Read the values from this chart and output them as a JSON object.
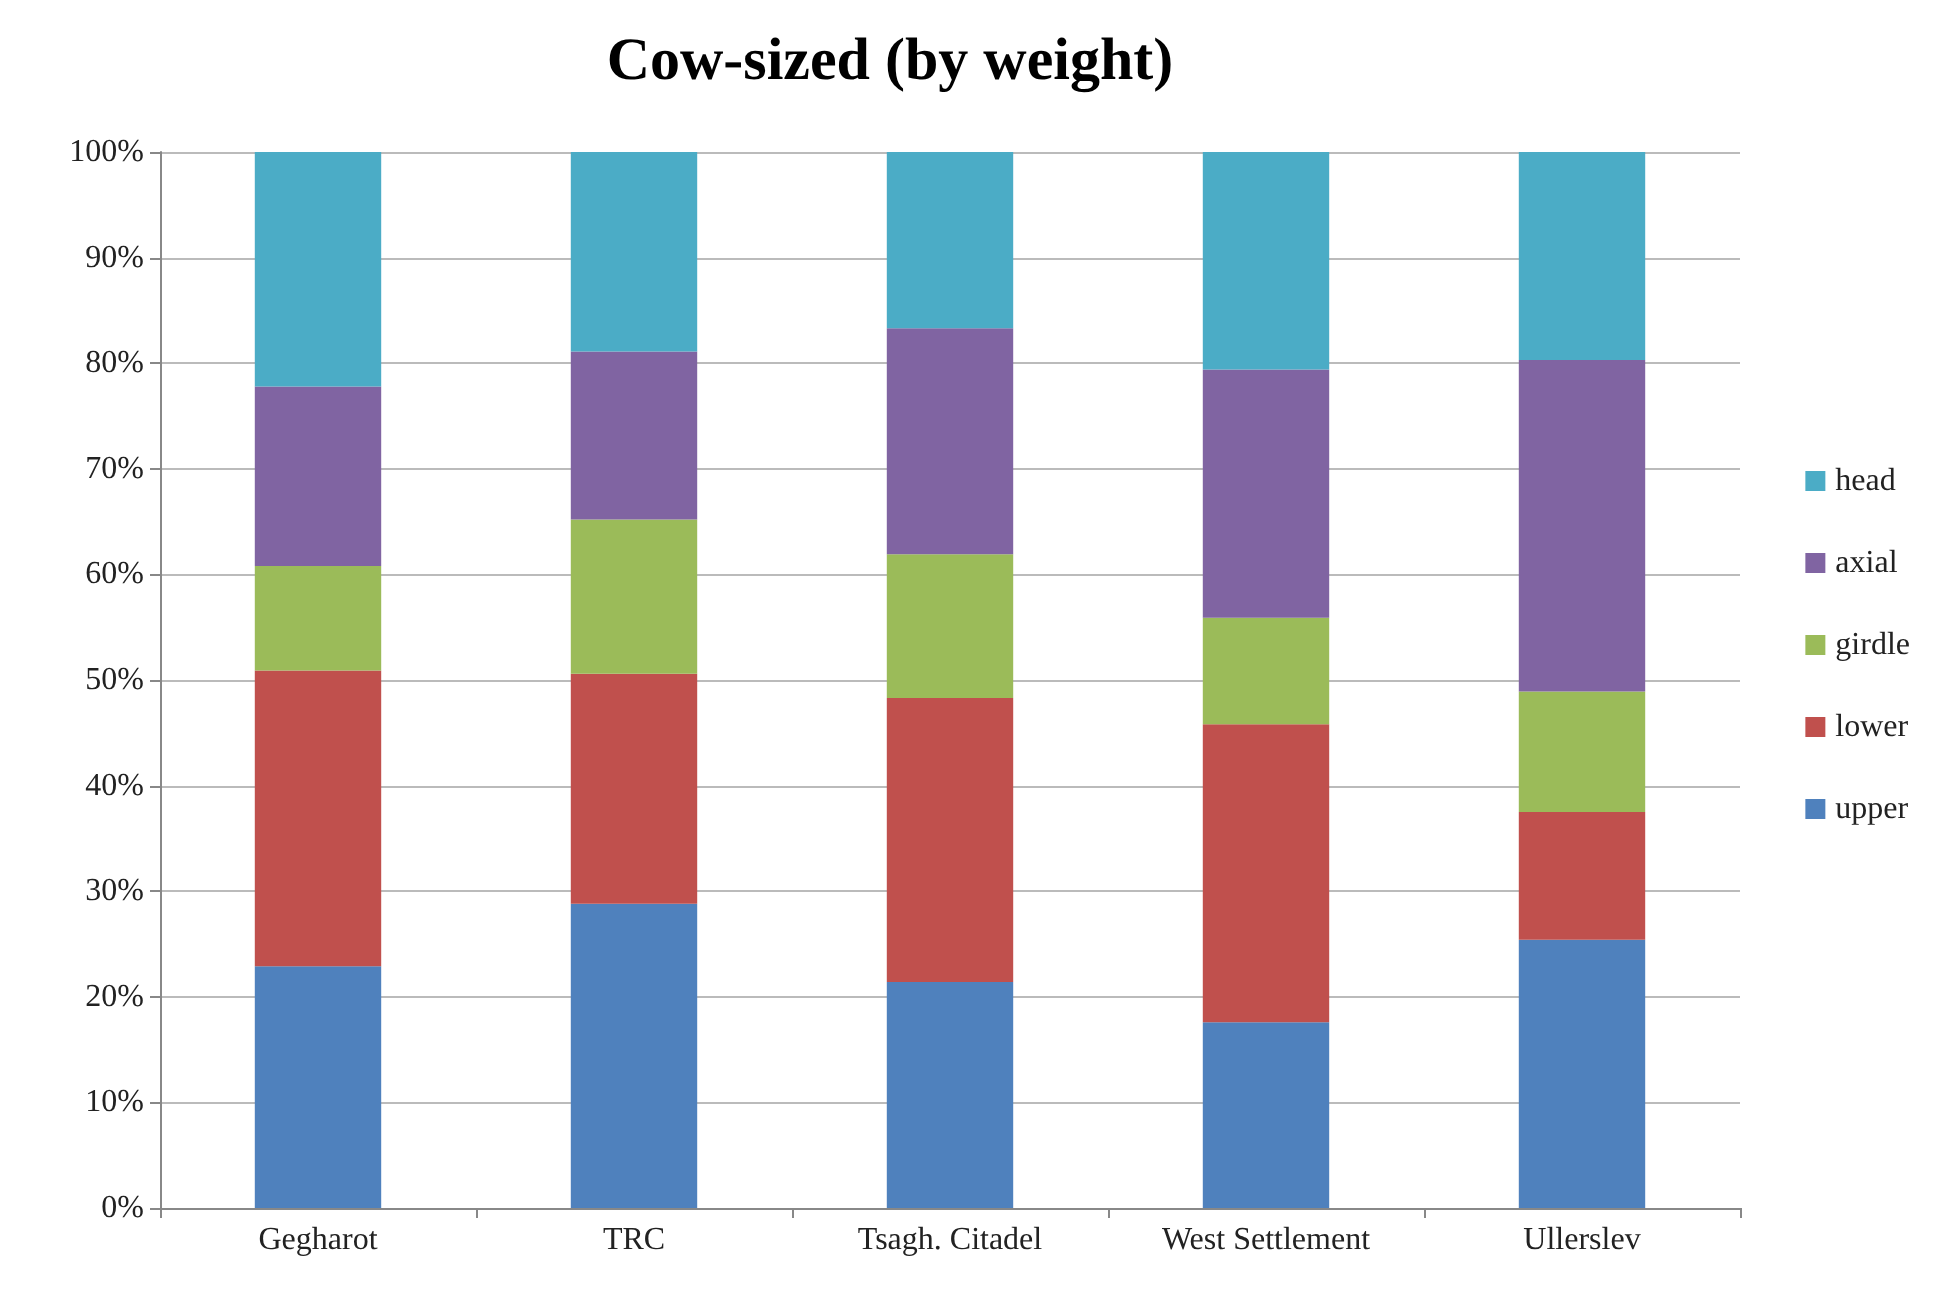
{
  "chart_data": {
    "type": "bar",
    "title": "Cow-sized (by weight)",
    "stacked": true,
    "categories": [
      "Gegharot",
      "TRC",
      "Tsagh. Citadel",
      "West Settlement",
      "Ullerslev"
    ],
    "series": [
      {
        "name": "upper",
        "color": "#4f81bd",
        "values": [
          22.9,
          28.8,
          21.4,
          17.6,
          25.4
        ]
      },
      {
        "name": "lower",
        "color": "#c0504d",
        "values": [
          28.0,
          21.8,
          26.9,
          28.2,
          12.1
        ]
      },
      {
        "name": "girdle",
        "color": "#9bbb59",
        "values": [
          9.9,
          14.6,
          13.6,
          10.1,
          11.4
        ]
      },
      {
        "name": "axial",
        "color": "#8064a2",
        "values": [
          17.0,
          15.9,
          21.4,
          23.5,
          31.4
        ]
      },
      {
        "name": "head",
        "color": "#4bacc6",
        "values": [
          22.2,
          18.9,
          16.7,
          20.6,
          19.7
        ]
      }
    ],
    "ylim": [
      0,
      100
    ],
    "yticks": [
      {
        "value": 0,
        "label": "0%"
      },
      {
        "value": 10,
        "label": "10%"
      },
      {
        "value": 20,
        "label": "20%"
      },
      {
        "value": 30,
        "label": "30%"
      },
      {
        "value": 40,
        "label": "40%"
      },
      {
        "value": 50,
        "label": "50%"
      },
      {
        "value": 60,
        "label": "60%"
      },
      {
        "value": 70,
        "label": "70%"
      },
      {
        "value": 80,
        "label": "80%"
      },
      {
        "value": 90,
        "label": "90%"
      },
      {
        "value": 100,
        "label": "100%"
      }
    ],
    "grid": "y",
    "legend": "right"
  }
}
